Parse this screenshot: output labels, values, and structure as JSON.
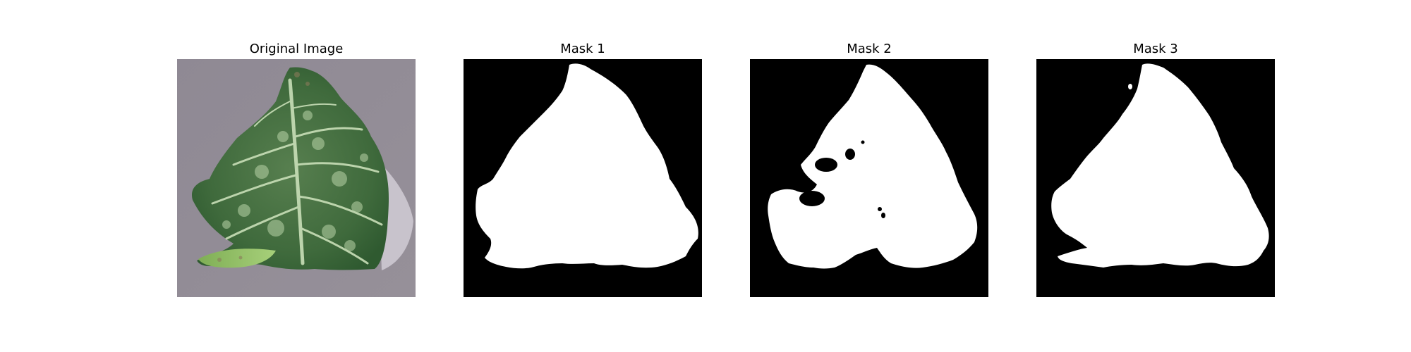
{
  "figure": {
    "panels": [
      {
        "title": "Original Image",
        "kind": "photo"
      },
      {
        "title": "Mask 1",
        "kind": "mask"
      },
      {
        "title": "Mask 2",
        "kind": "mask"
      },
      {
        "title": "Mask 3",
        "kind": "mask"
      }
    ]
  },
  "colors": {
    "background": "#ffffff",
    "mask_background": "#000000",
    "mask_foreground": "#ffffff",
    "photo_background": "#8e8893",
    "leaf_dark": "#3f6a3c",
    "leaf_light": "#b5d0a5"
  }
}
